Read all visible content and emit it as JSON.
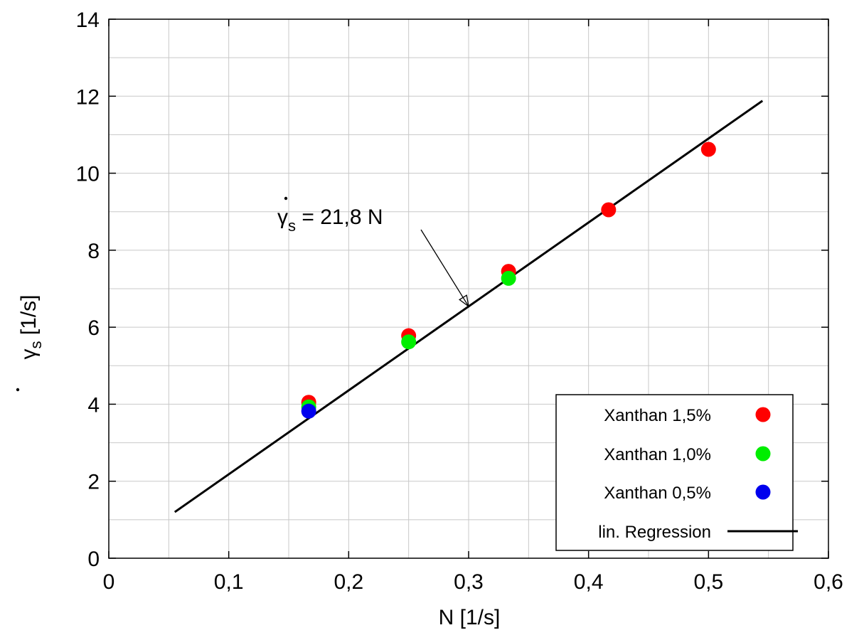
{
  "chart_data": {
    "type": "scatter",
    "xlabel": "N [1/s]",
    "ylabel": {
      "symbol": "γ",
      "sub": "s",
      "unit": " [1/s]"
    },
    "xlim": [
      0,
      0.6
    ],
    "ylim": [
      0,
      14
    ],
    "x_ticks": [
      0,
      0.1,
      0.2,
      0.3,
      0.4,
      0.5,
      0.6
    ],
    "x_tick_labels": [
      "0",
      "0,1",
      "0,2",
      "0,3",
      "0,4",
      "0,5",
      "0,6"
    ],
    "y_ticks": [
      0,
      2,
      4,
      6,
      8,
      10,
      12,
      14
    ],
    "y_tick_labels": [
      "0",
      "2",
      "4",
      "6",
      "8",
      "10",
      "12",
      "14"
    ],
    "minor_grid_step_x": 0.05,
    "minor_grid_step_y": 1,
    "grid": true,
    "series": [
      {
        "name": "Xanthan 1,5%",
        "color": "#ff0000",
        "x": [
          0.1667,
          0.25,
          0.3333,
          0.4167,
          0.5
        ],
        "y": [
          4.05,
          5.78,
          7.45,
          9.05,
          10.62
        ]
      },
      {
        "name": "Xanthan 1,0%",
        "color": "#00ee00",
        "x": [
          0.1667,
          0.25,
          0.3333
        ],
        "y": [
          3.93,
          5.62,
          7.27
        ]
      },
      {
        "name": "Xanthan 0,5%",
        "color": "#0000ee",
        "x": [
          0.1667
        ],
        "y": [
          3.82
        ]
      }
    ],
    "regression": {
      "name": "lin. Regression",
      "slope": 21.8,
      "x_range": [
        0.055,
        0.545
      ],
      "color": "#000000"
    },
    "annotation": {
      "symbol": "γ",
      "sub": "s",
      "rest": " = 21,8 N",
      "points_to_x": 0.3
    },
    "legend_position": "bottom-right"
  }
}
